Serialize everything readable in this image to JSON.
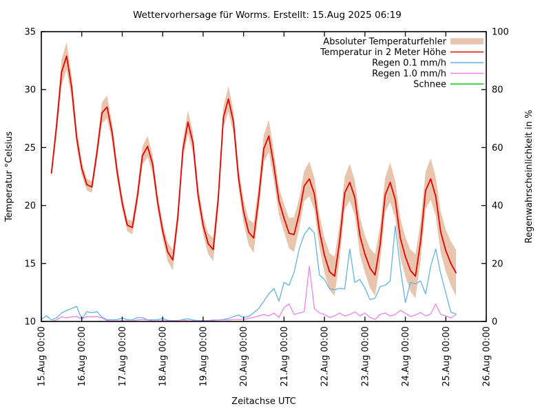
{
  "title": "Wettervorhersage für Worms. Erstellt: 15.Aug 2025 06:19",
  "axes": {
    "x_label": "Zeitachse UTC",
    "y_left_label": "Temperatur °Celsius",
    "y_right_label": "Regenwahrscheinlichkeit in %",
    "y_left_ticks": [
      10,
      15,
      20,
      25,
      30,
      35
    ],
    "y_right_ticks": [
      0,
      20,
      40,
      60,
      80,
      100
    ],
    "x_tick_labels": [
      "15.Aug 00:00",
      "16.Aug 00:00",
      "17.Aug 00:00",
      "18.Aug 00:00",
      "19.Aug 00:00",
      "20.Aug 00:00",
      "21.Aug 00:00",
      "22.Aug 00:00",
      "23.Aug 00:00",
      "24.Aug 00:00",
      "25.Aug 00:00",
      "26.Aug 00:00"
    ]
  },
  "legend": [
    {
      "label": "Absoluter Temperaturfehler",
      "swatch": "band",
      "color": "#eac5ae"
    },
    {
      "label": "Temperatur in 2 Meter Höhe",
      "swatch": "line",
      "color": "#e60000"
    },
    {
      "label": "Regen 0.1 mm/h",
      "swatch": "line",
      "color": "#62b2e2"
    },
    {
      "label": "Regen 1.0 mm/h",
      "swatch": "line",
      "color": "#ee82ee"
    },
    {
      "label": "Schnee",
      "swatch": "line",
      "color": "#00cc00"
    }
  ],
  "chart_data": {
    "type": "line",
    "title": "Wettervorhersage für Worms. Erstellt: 15.Aug 2025 06:19",
    "xlabel": "Zeitachse UTC",
    "ylabel_left": "Temperatur °Celsius",
    "ylabel_right": "Regenwahrscheinlichkeit in %",
    "x_axis_days": [
      "15.Aug",
      "16.Aug",
      "17.Aug",
      "18.Aug",
      "19.Aug",
      "20.Aug",
      "21.Aug",
      "22.Aug",
      "23.Aug",
      "24.Aug",
      "25.Aug",
      "26.Aug"
    ],
    "x_total_hours": 264,
    "ylim_left": [
      10,
      35
    ],
    "ylim_right": [
      0,
      100
    ],
    "grid": false,
    "legend_position": "top-right-inside",
    "series": [
      {
        "name": "Temperatur in 2 Meter Höhe",
        "axis": "left",
        "unit": "°C",
        "color": "#e60000",
        "start_hour": 6,
        "step_hours": 3,
        "values": [
          22.8,
          26.8,
          31.5,
          32.9,
          30.2,
          25.8,
          23.2,
          21.8,
          21.6,
          24.6,
          28.0,
          28.5,
          26.3,
          22.9,
          20.2,
          18.3,
          18.1,
          20.8,
          24.3,
          25.1,
          23.6,
          20.3,
          17.8,
          16.0,
          15.3,
          19.0,
          24.8,
          27.2,
          25.4,
          20.9,
          18.3,
          16.7,
          16.2,
          20.6,
          27.6,
          29.2,
          27.2,
          22.4,
          19.5,
          17.7,
          17.2,
          20.7,
          24.9,
          26.0,
          23.4,
          20.4,
          18.9,
          17.6,
          17.5,
          19.3,
          21.7,
          22.3,
          21.0,
          17.8,
          15.7,
          14.3,
          13.9,
          16.9,
          21.1,
          22.0,
          20.7,
          17.4,
          15.8,
          14.6,
          14.0,
          16.6,
          20.9,
          22.0,
          20.5,
          17.2,
          15.6,
          14.4,
          13.9,
          16.9,
          21.3,
          22.3,
          20.8,
          17.7,
          16.1,
          15.0,
          14.2
        ]
      },
      {
        "name": "Absoluter Temperaturfehler",
        "axis": "left",
        "unit": "±°C",
        "color": "#eac5ae",
        "start_hour": 6,
        "step_hours": 3,
        "error_values": [
          0.4,
          0.8,
          1.1,
          1.2,
          1.0,
          0.8,
          0.6,
          0.5,
          0.5,
          0.7,
          0.9,
          1.0,
          0.8,
          0.7,
          0.6,
          0.5,
          0.6,
          0.7,
          0.8,
          0.9,
          0.8,
          0.7,
          0.7,
          0.8,
          0.9,
          0.8,
          0.8,
          1.0,
          0.9,
          0.8,
          0.8,
          0.9,
          1.0,
          0.9,
          0.9,
          1.1,
          1.0,
          0.9,
          1.0,
          1.1,
          1.3,
          1.1,
          1.2,
          1.4,
          1.3,
          1.2,
          1.2,
          1.3,
          1.5,
          1.3,
          1.3,
          1.5,
          1.4,
          1.4,
          1.5,
          1.6,
          1.7,
          1.5,
          1.4,
          1.6,
          1.5,
          1.6,
          1.6,
          1.7,
          1.8,
          1.6,
          1.5,
          1.7,
          1.6,
          1.7,
          1.7,
          1.8,
          1.9,
          1.7,
          1.6,
          1.8,
          1.7,
          1.8,
          1.8,
          1.9,
          2.0
        ]
      },
      {
        "name": "Regen 0.1 mm/h",
        "axis": "right",
        "unit": "%",
        "color": "#62b2e2",
        "start_hour": 0,
        "step_hours": 3,
        "values": [
          0.7,
          2.0,
          0.5,
          1.2,
          2.9,
          3.8,
          4.5,
          5.2,
          0.7,
          3.4,
          3.0,
          3.4,
          1.5,
          0.6,
          0.6,
          0.6,
          1.2,
          0.6,
          0.6,
          1.3,
          1.3,
          0.6,
          0.6,
          0.6,
          1.0,
          0.4,
          0.3,
          0.3,
          0.7,
          0.9,
          0.5,
          0.3,
          0.3,
          0.3,
          0.5,
          0.5,
          0.7,
          1.0,
          1.7,
          2.2,
          1.4,
          1.7,
          3.0,
          4.5,
          7.0,
          9.5,
          11.4,
          7.0,
          13.5,
          12.5,
          17.0,
          25.0,
          30.0,
          32.4,
          30.5,
          16.0,
          14.5,
          11.3,
          11.0,
          11.4,
          11.2,
          25.0,
          13.5,
          14.5,
          11.5,
          7.5,
          8.0,
          12.0,
          12.5,
          14.0,
          33.0,
          18.5,
          6.5,
          13.5,
          13.0,
          14.0,
          9.5,
          19.0,
          25.0,
          16.5,
          9.8,
          3.2,
          2.6
        ]
      },
      {
        "name": "Regen 1.0 mm/h",
        "axis": "right",
        "unit": "%",
        "color": "#ee82ee",
        "start_hour": 0,
        "step_hours": 3,
        "values": [
          0.0,
          0.0,
          0.0,
          0.5,
          1.6,
          1.2,
          1.6,
          1.7,
          0.8,
          1.7,
          1.6,
          1.7,
          1.2,
          0.3,
          0.2,
          0.2,
          0.2,
          0.2,
          0.2,
          0.5,
          0.7,
          0.5,
          0.2,
          0.2,
          0.2,
          0.2,
          0.2,
          0.2,
          0.5,
          0.2,
          0.2,
          0.2,
          0.2,
          0.2,
          0.2,
          0.5,
          0.5,
          0.5,
          0.7,
          0.7,
          0.7,
          1.0,
          1.4,
          1.9,
          2.4,
          1.9,
          2.9,
          1.4,
          4.8,
          6.0,
          2.4,
          2.9,
          3.3,
          19.0,
          4.5,
          2.9,
          2.4,
          1.4,
          1.9,
          2.9,
          1.9,
          2.4,
          3.3,
          1.9,
          2.9,
          1.4,
          0.7,
          2.4,
          2.9,
          1.9,
          2.4,
          3.8,
          2.9,
          1.7,
          2.2,
          3.1,
          1.9,
          2.6,
          6.0,
          2.4,
          1.9,
          1.2,
          2.4
        ]
      },
      {
        "name": "Schnee",
        "axis": "right",
        "unit": "%",
        "color": "#00cc00",
        "start_hour": 0,
        "step_hours": 3,
        "values": []
      }
    ]
  }
}
